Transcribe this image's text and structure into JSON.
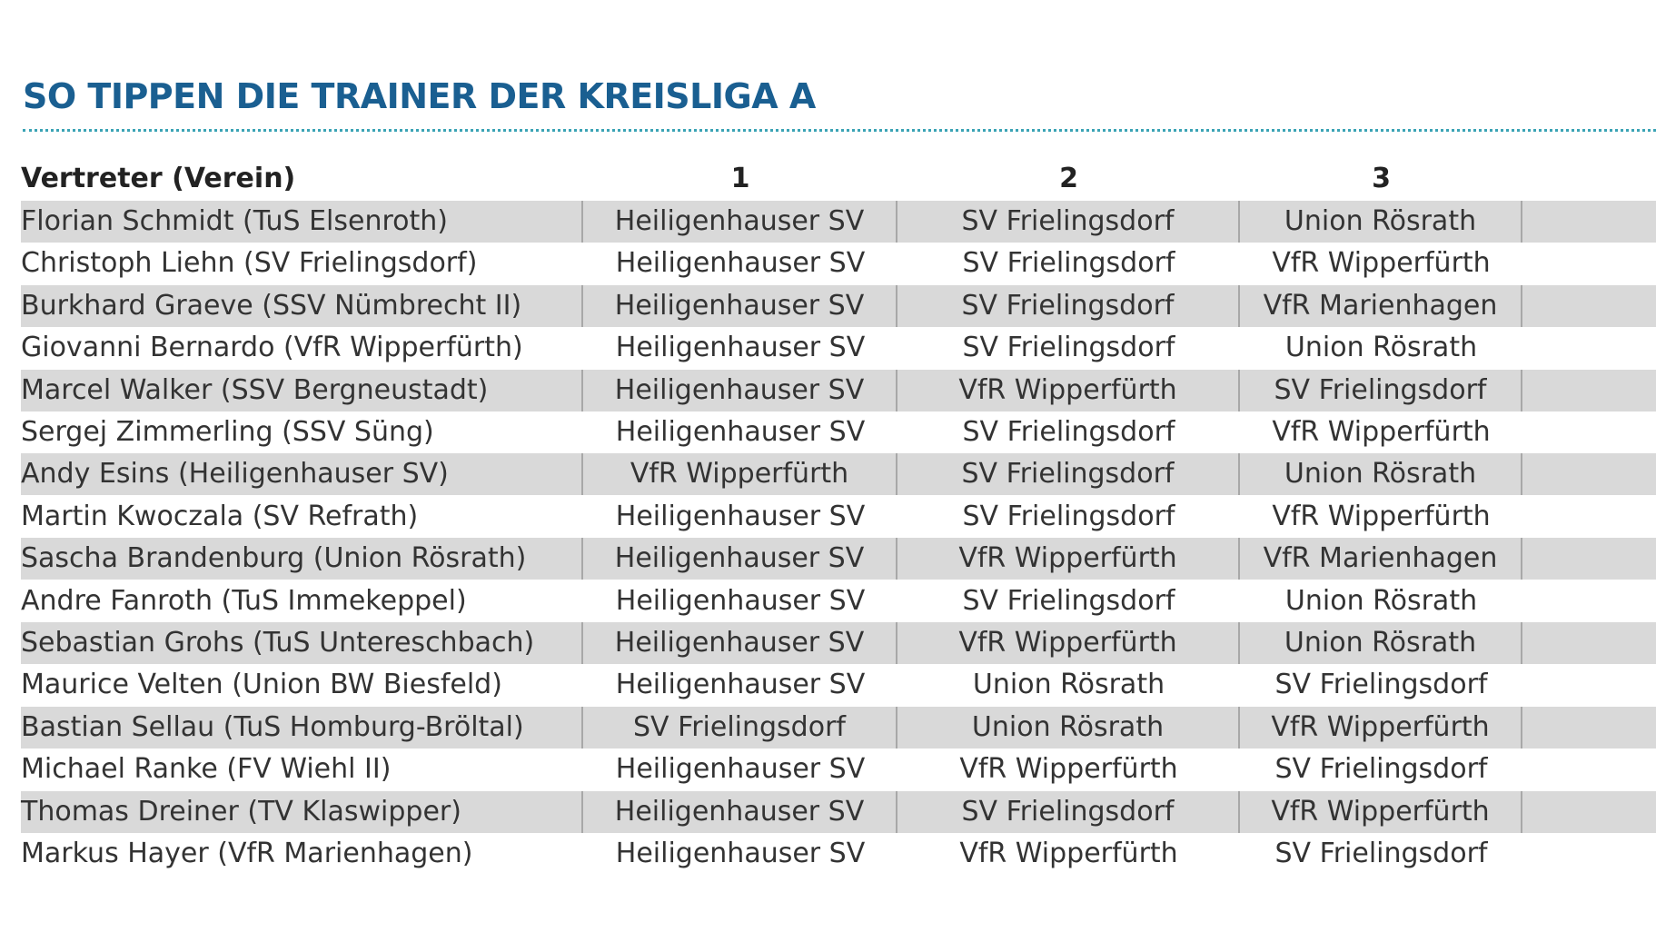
{
  "title": "SO TIPPEN DIE TRAINER DER KREISLIGA A",
  "table": {
    "header": [
      "Vertreter (Verein)",
      "1",
      "2",
      "3"
    ],
    "rows": [
      [
        "Florian Schmidt (TuS Elsenroth)",
        "Heiligenhauser SV",
        "SV Frielingsdorf",
        "Union Rösrath"
      ],
      [
        "Christoph Liehn (SV Frielingsdorf)",
        "Heiligenhauser SV",
        "SV Frielingsdorf",
        "VfR Wipperfürth"
      ],
      [
        "Burkhard Graeve (SSV Nümbrecht II)",
        "Heiligenhauser SV",
        "SV Frielingsdorf",
        "VfR Marienhagen"
      ],
      [
        "Giovanni Bernardo (VfR Wipperfürth)",
        "Heiligenhauser SV",
        "SV Frielingsdorf",
        "Union Rösrath"
      ],
      [
        "Marcel Walker (SSV Bergneustadt)",
        "Heiligenhauser SV",
        "VfR Wipperfürth",
        "SV Frielingsdorf"
      ],
      [
        "Sergej Zimmerling (SSV Süng)",
        "Heiligenhauser SV",
        "SV Frielingsdorf",
        "VfR Wipperfürth"
      ],
      [
        "Andy Esins (Heiligenhauser SV)",
        "VfR Wipperfürth",
        "SV Frielingsdorf",
        "Union Rösrath"
      ],
      [
        "Martin Kwoczala (SV Refrath)",
        "Heiligenhauser SV",
        "SV Frielingsdorf",
        "VfR Wipperfürth"
      ],
      [
        "Sascha Brandenburg (Union Rösrath)",
        "Heiligenhauser SV",
        "VfR Wipperfürth",
        "VfR Marienhagen"
      ],
      [
        "Andre Fanroth (TuS Immekeppel)",
        "Heiligenhauser SV",
        "SV Frielingsdorf",
        "Union Rösrath"
      ],
      [
        "Sebastian Grohs (TuS Untereschbach)",
        "Heiligenhauser SV",
        "VfR Wipperfürth",
        "Union Rösrath"
      ],
      [
        "Maurice Velten (Union BW Biesfeld)",
        "Heiligenhauser SV",
        "Union Rösrath",
        "SV Frielingsdorf"
      ],
      [
        "Bastian Sellau (TuS Homburg-Bröltal)",
        "SV Frielingsdorf",
        "Union Rösrath",
        "VfR Wipperfürth"
      ],
      [
        "Michael Ranke (FV Wiehl II)",
        "Heiligenhauser SV",
        "VfR Wipperfürth",
        "SV Frielingsdorf"
      ],
      [
        "Thomas Dreiner (TV Klaswipper)",
        "Heiligenhauser SV",
        "SV Frielingsdorf",
        "VfR Wipperfürth"
      ],
      [
        "Markus Hayer (VfR Marienhagen)",
        "Heiligenhauser SV",
        "VfR Wipperfürth",
        "SV Frielingsdorf"
      ]
    ]
  }
}
